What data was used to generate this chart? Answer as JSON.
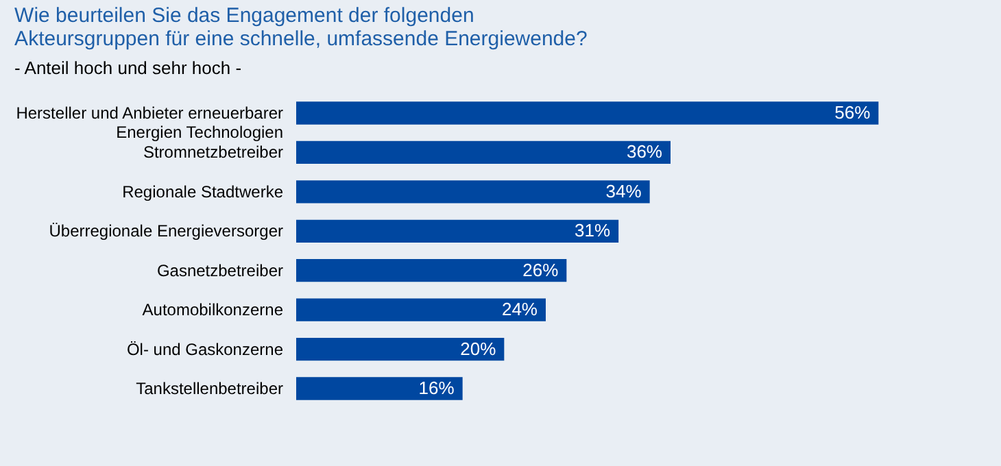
{
  "chart_data": {
    "type": "bar",
    "orientation": "horizontal",
    "title": "Wie beurteilen Sie das Engagement der folgenden Akteursgruppen für eine schnelle, umfassende Energiewende?",
    "subtitle": "- Anteil hoch und sehr hoch -",
    "categories": [
      "Hersteller und Anbieter erneuerbarer Energien Technologien",
      "Stromnetzbetreiber",
      "Regionale Stadtwerke",
      "Überregionale Energieversorger",
      "Gasnetzbetreiber",
      "Automobilkonzerne",
      "Öl- und Gaskonzerne",
      "Tankstellenbetreiber"
    ],
    "values": [
      56,
      36,
      34,
      31,
      26,
      24,
      20,
      16
    ],
    "value_labels": [
      "56%",
      "36%",
      "34%",
      "31%",
      "26%",
      "24%",
      "20%",
      "16%"
    ],
    "color": "#0047a0"
  }
}
